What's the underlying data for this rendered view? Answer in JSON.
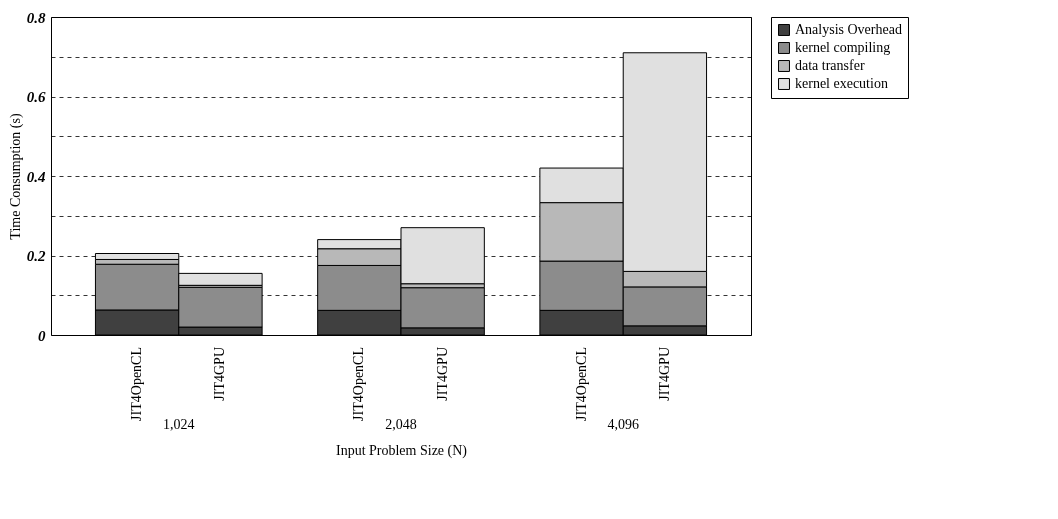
{
  "chart_data": {
    "type": "bar",
    "stacked": true,
    "xlabel": "Input Problem Size (N)",
    "ylabel": "Time Consumption (s)",
    "categories": [
      "JIT4OpenCL",
      "JIT4GPU",
      "JIT4OpenCL",
      "JIT4GPU",
      "JIT4OpenCL",
      "JIT4GPU"
    ],
    "annotations": [
      "1,024",
      "2,048",
      "4,096"
    ],
    "series": [
      {
        "name": "Analysis Overhead",
        "color": "#404040",
        "values": [
          0.063,
          0.02,
          0.062,
          0.018,
          0.062,
          0.023
        ]
      },
      {
        "name": "kernel compiling",
        "color": "#8c8c8c",
        "values": [
          0.115,
          0.1,
          0.113,
          0.101,
          0.124,
          0.098
        ]
      },
      {
        "name": "data transfer",
        "color": "#b8b8b8",
        "values": [
          0.012,
          0.005,
          0.042,
          0.01,
          0.147,
          0.039
        ]
      },
      {
        "name": "kernel execution",
        "color": "#e0e0e0",
        "values": [
          0.015,
          0.03,
          0.023,
          0.141,
          0.087,
          0.55
        ]
      }
    ],
    "ylim": [
      0,
      0.8
    ],
    "yticks": [
      0,
      {
        "value": 0.1,
        "label": null
      },
      0.2,
      {
        "value": 0.3,
        "label": null
      },
      0.4,
      {
        "value": 0.5,
        "label": null
      },
      0.6,
      {
        "value": 0.7,
        "label": null
      },
      0.8
    ],
    "grid": "y",
    "legend": "top right"
  }
}
